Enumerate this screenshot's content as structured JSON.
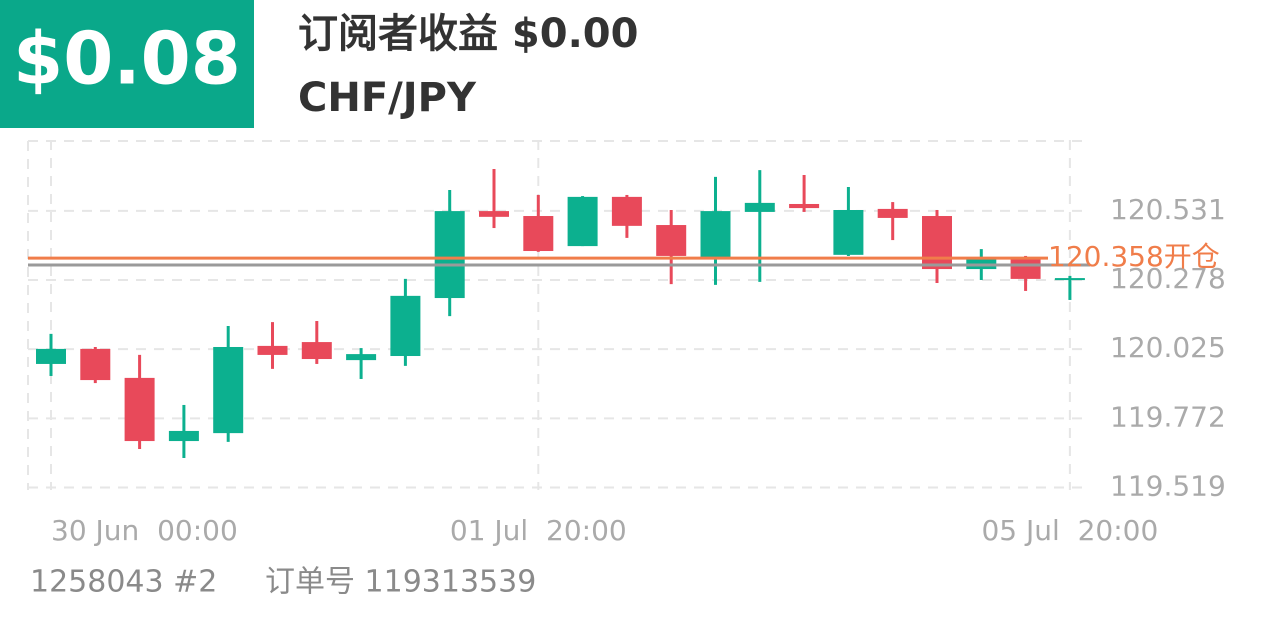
{
  "chart_data": {
    "type": "candlestick",
    "badge": "$0.08",
    "title": "订阅者收益 $0.00",
    "subtitle": "CHF/JPY",
    "badge_color": "#0aa88a",
    "up_color": "#0cb08f",
    "down_color": "#e8495a",
    "categories": [
      "30 Jun  00:00",
      null,
      null,
      null,
      null,
      null,
      null,
      null,
      null,
      null,
      null,
      "01 Jul  20:00",
      null,
      null,
      null,
      null,
      null,
      null,
      null,
      null,
      null,
      null,
      null,
      "05 Jul  20:00"
    ],
    "open": [
      119.971,
      120.026,
      119.92,
      119.689,
      119.718,
      120.037,
      120.051,
      119.985,
      120.0,
      120.212,
      120.53,
      120.512,
      120.402,
      120.582,
      120.479,
      120.359,
      120.527,
      120.556,
      120.37,
      120.538,
      120.512,
      120.318,
      120.359,
      120.278
    ],
    "high": [
      120.081,
      120.033,
      120.004,
      119.821,
      120.11,
      120.124,
      120.128,
      120.029,
      120.282,
      120.607,
      120.684,
      120.589,
      120.585,
      120.589,
      120.534,
      120.655,
      120.68,
      120.662,
      120.618,
      120.563,
      120.534,
      120.391,
      120.366,
      120.293
    ],
    "low": [
      119.927,
      119.901,
      119.66,
      119.627,
      119.686,
      119.953,
      119.971,
      119.916,
      119.964,
      120.146,
      120.468,
      120.381,
      120.402,
      120.432,
      120.263,
      120.26,
      120.271,
      120.527,
      120.366,
      120.424,
      120.267,
      120.278,
      120.238,
      120.205
    ],
    "close": [
      120.026,
      119.912,
      119.689,
      119.726,
      120.033,
      120.004,
      119.989,
      120.007,
      120.22,
      120.53,
      120.509,
      120.384,
      120.582,
      120.476,
      120.366,
      120.53,
      120.56,
      120.541,
      120.534,
      120.505,
      120.318,
      120.359,
      120.282,
      120.285
    ],
    "ylim": [
      119.51,
      120.79
    ],
    "yticks": [
      119.519,
      119.772,
      120.025,
      120.278,
      120.531
    ],
    "grid": true,
    "open_line": {
      "value": 120.358,
      "label": "120.358开仓",
      "color": "#f07d4a"
    },
    "current_line": {
      "value": 120.333,
      "color": "#9a9a9a"
    }
  },
  "footer": {
    "account": "1258043 #2",
    "order": "订单号 119313539"
  }
}
